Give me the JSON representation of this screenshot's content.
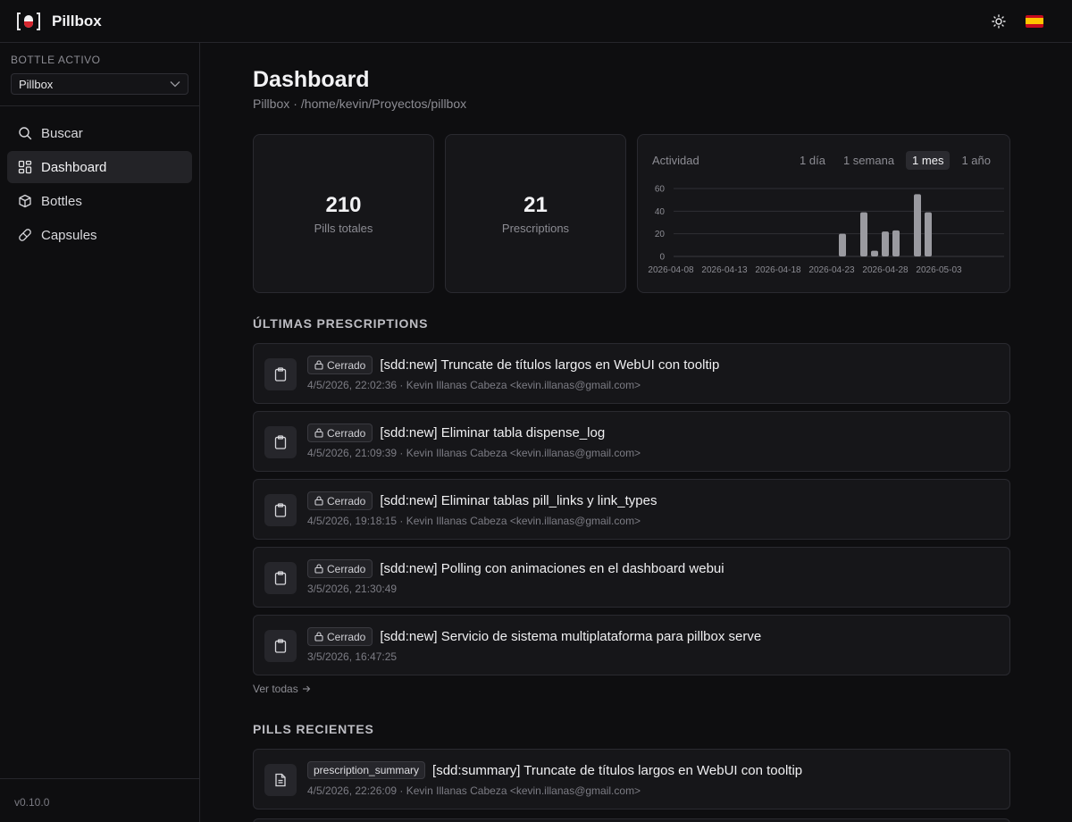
{
  "app": {
    "name": "Pillbox",
    "version": "v0.10.0"
  },
  "topbar": {
    "theme_icon": "sun-icon",
    "language_flag": "spain-flag"
  },
  "sidebar": {
    "bottle_label": "BOTTLE ACTIVO",
    "bottle_selected": "Pillbox",
    "items": [
      {
        "label": "Buscar",
        "icon": "search-icon",
        "active": false
      },
      {
        "label": "Dashboard",
        "icon": "dashboard-icon",
        "active": true
      },
      {
        "label": "Bottles",
        "icon": "box-icon",
        "active": false
      },
      {
        "label": "Capsules",
        "icon": "pill-icon",
        "active": false
      }
    ]
  },
  "main": {
    "title": "Dashboard",
    "subtitle_name": "Pillbox",
    "subtitle_sep": "·",
    "subtitle_path": "/home/kevin/Proyectos/pillbox",
    "stats": [
      {
        "value": "210",
        "label": "Pills totales"
      },
      {
        "value": "21",
        "label": "Prescriptions"
      }
    ],
    "activity": {
      "title": "Actividad",
      "ranges": [
        "1 día",
        "1 semana",
        "1 mes",
        "1 año"
      ],
      "active_range": "1 mes"
    },
    "prescriptions_title": "ÚLTIMAS PRESCRIPTIONS",
    "prescriptions": [
      {
        "status": "Cerrado",
        "title": "[sdd:new] Truncate de títulos largos en WebUI con tooltip",
        "meta": "4/5/2026, 22:02:36 · Kevin Illanas Cabeza <kevin.illanas@gmail.com>"
      },
      {
        "status": "Cerrado",
        "title": "[sdd:new] Eliminar tabla dispense_log",
        "meta": "4/5/2026, 21:09:39 · Kevin Illanas Cabeza <kevin.illanas@gmail.com>"
      },
      {
        "status": "Cerrado",
        "title": "[sdd:new] Eliminar tablas pill_links y link_types",
        "meta": "4/5/2026, 19:18:15 · Kevin Illanas Cabeza <kevin.illanas@gmail.com>"
      },
      {
        "status": "Cerrado",
        "title": "[sdd:new] Polling con animaciones en el dashboard webui",
        "meta": "3/5/2026, 21:30:49"
      },
      {
        "status": "Cerrado",
        "title": "[sdd:new] Servicio de sistema multiplataforma para pillbox serve",
        "meta": "3/5/2026, 16:47:25"
      }
    ],
    "see_all": "Ver todas",
    "pills_title": "PILLS RECIENTES",
    "pills": [
      {
        "type": "prescription_summary",
        "title": "[sdd:summary] Truncate de títulos largos en WebUI con tooltip",
        "meta": "4/5/2026, 22:26:09 · Kevin Illanas Cabeza <kevin.illanas@gmail.com>"
      }
    ]
  },
  "chart_data": {
    "type": "bar",
    "title": "Actividad",
    "x_tick_labels": [
      "2026-04-08",
      "2026-04-13",
      "2026-04-18",
      "2026-04-23",
      "2026-04-28",
      "2026-05-03"
    ],
    "y_ticks": [
      0,
      20,
      40,
      60
    ],
    "ylim": [
      0,
      60
    ],
    "grid": true,
    "bar_color": "#9a9aa0",
    "categories": [
      "2026-04-24",
      "2026-04-26",
      "2026-04-27",
      "2026-04-28",
      "2026-04-29",
      "2026-05-01",
      "2026-05-02"
    ],
    "values": [
      20,
      39,
      5,
      22,
      23,
      55,
      39
    ]
  }
}
